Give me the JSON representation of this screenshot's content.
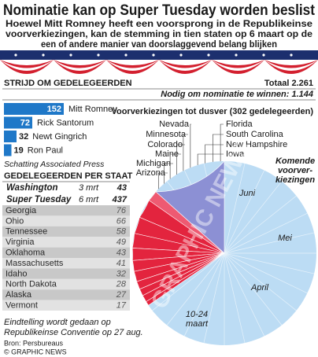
{
  "title": "Nominatie kan op Super Tuesday worden beslist",
  "subtitle_lines": [
    "Hoewel Mitt Romney heeft een voorsprong in de Republikeinse",
    "voorverkiezingen, kan de stemming in tien staten op 6 maart op de",
    "een of andere manier van doorslaggevend belang blijken"
  ],
  "chart_data": [
    {
      "type": "bar",
      "title": "STRIJD OM GEDELEGEERDEN",
      "total": {
        "value": 2261,
        "label": "Totaal 2.261"
      },
      "needed": {
        "value": 1144,
        "label": "Nodig om nominatie te winnen: 1.144"
      },
      "categories": [
        "Mitt Romney",
        "Rick Santorum",
        "Newt Gingrich",
        "Ron Paul"
      ],
      "values": [
        152,
        72,
        32,
        19
      ],
      "color": "#1f78c8",
      "note": "Schatting Associated Press"
    },
    {
      "type": "pie",
      "so_far": {
        "value": 302,
        "label": "Voorverkiezingen tot dusver (302 gedelegeerden)"
      },
      "past_states": [
        "Nevada",
        "Minnesota",
        "Colorado",
        "Maine",
        "Michigan",
        "Arizona",
        "Florida",
        "South Carolina",
        "New Hampshire",
        "Iowa"
      ],
      "upcoming_lines": [
        "Komende",
        "voorver-",
        "kiezingen"
      ],
      "months": [
        "Juni",
        "Mei",
        "April",
        "10-24",
        "maart"
      ],
      "colors": {
        "past": "#8c90d4",
        "washington": "#ee5a72",
        "super_tuesday": "#e3243e",
        "upcoming": "#bcdcf4"
      }
    }
  ],
  "state_table": {
    "title": "GEDELEGEERDEN PER STAAT",
    "washington": {
      "name": "Washington",
      "date": "3 mrt",
      "value": 43
    },
    "super_tuesday": {
      "name": "Super Tuesday",
      "date": "6 mrt",
      "value": 437
    },
    "rows": [
      [
        "Georgia",
        76
      ],
      [
        "Ohio",
        66
      ],
      [
        "Tennessee",
        58
      ],
      [
        "Virginia",
        49
      ],
      [
        "Oklahoma",
        43
      ],
      [
        "Massachusetts",
        41
      ],
      [
        "Idaho",
        32
      ],
      [
        "North Dakota",
        28
      ],
      [
        "Alaska",
        27
      ],
      [
        "Vermont",
        17
      ]
    ]
  },
  "footer": {
    "note_lines": [
      "Eindtelling wordt gedaan op",
      "Republikeinse Conventie op 27 aug."
    ],
    "source": "Bron: Persbureaus",
    "credit": "© GRAPHIC NEWS"
  },
  "watermark": "© GRAPHIC NEWS"
}
